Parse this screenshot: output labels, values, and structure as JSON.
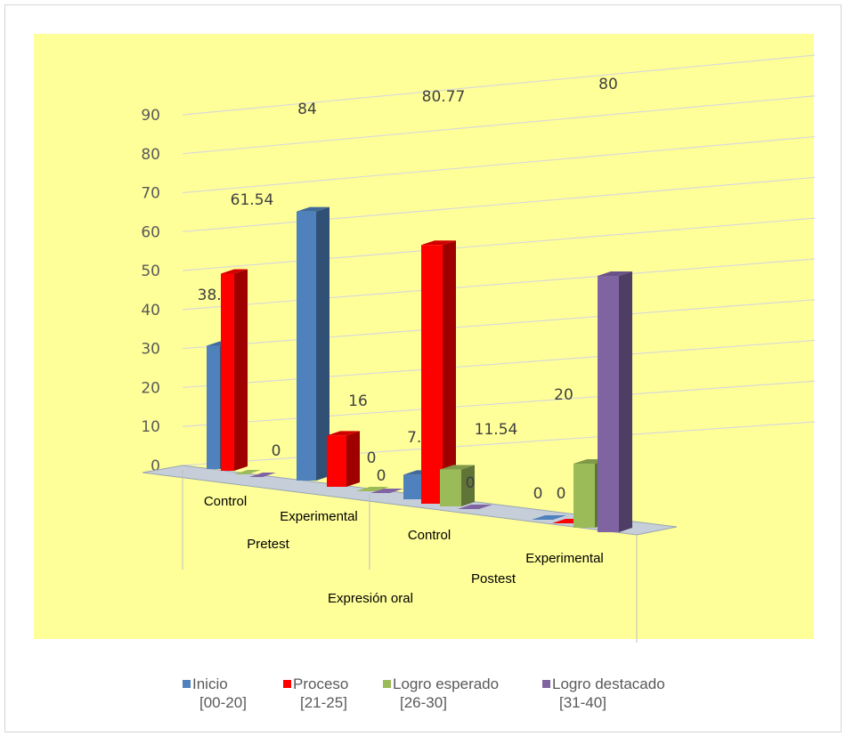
{
  "chart_data": {
    "type": "bar",
    "style": "3d-clustered-column",
    "ylim": [
      0,
      90
    ],
    "yticks": [
      0,
      10,
      20,
      30,
      40,
      50,
      60,
      70,
      80,
      90
    ],
    "grid": true,
    "legend_position": "bottom",
    "category_levels": {
      "groups": [
        "Control",
        "Experimental",
        "Control",
        "Experimental"
      ],
      "phases": [
        "Pretest",
        "Postest"
      ],
      "top": "Expresión oral"
    },
    "series": [
      {
        "name": "Inicio",
        "range": "[00-20]",
        "color": "#4f81bd",
        "values": [
          38.46,
          84,
          7.69,
          0
        ],
        "labels": [
          "38.46",
          "84",
          "7.69",
          "0"
        ]
      },
      {
        "name": "Proceso",
        "range": "[21-25]",
        "color": "#ff0000",
        "values": [
          61.54,
          16,
          80.77,
          0
        ],
        "labels": [
          "61.54",
          "16",
          "80.77",
          "0"
        ]
      },
      {
        "name": "Logro esperado",
        "range": "[26-30]",
        "color": "#9bbb59",
        "values": [
          0,
          0,
          11.54,
          20
        ],
        "labels": [
          "0",
          "0",
          "11.54",
          "20"
        ]
      },
      {
        "name": "Logro destacado",
        "range": "[31-40]",
        "color": "#8064a2",
        "values": [
          0,
          0,
          0,
          80
        ],
        "labels": [
          "0",
          "0",
          "0",
          "80"
        ]
      }
    ]
  },
  "colors": {
    "plot_background": "#ffff99"
  }
}
